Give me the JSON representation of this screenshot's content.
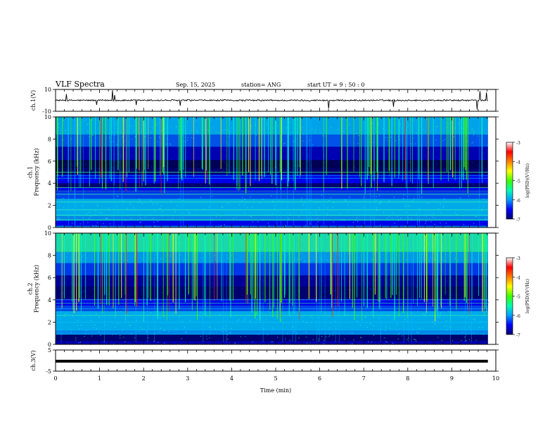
{
  "header": {
    "title": "VLF Spectra",
    "date": "Sep. 15, 2025",
    "station": "station= ANG",
    "start": "start  UT =   9 : 50 : 0"
  },
  "chart_data": [
    {
      "type": "line",
      "id": "ch1-waveform",
      "ylabel": "ch.1(V)",
      "ylim": [
        -10,
        10
      ],
      "ytick_labels": [
        "10",
        "-10"
      ],
      "baseline_value": 0,
      "xlim": [
        0,
        10
      ],
      "note": "raw waveform, near 0 V with sparse spikes"
    },
    {
      "type": "heatmap",
      "id": "ch1-spectrogram",
      "ylabel": "ch.1 Frequency (kHz)",
      "ylabel_lines": [
        "ch.1",
        "Frequency  (kHz)"
      ],
      "ylim": [
        0,
        10
      ],
      "ytick_labels": [
        "0",
        "2",
        "4",
        "6",
        "8",
        "10"
      ],
      "xlim": [
        0,
        10
      ],
      "data_end_min": 9.82,
      "colorbar": {
        "label": "log(PSD)(V²/Hz)",
        "range": [
          -7,
          -3
        ],
        "tick_labels": [
          "-3",
          "-4",
          "-5",
          "-6",
          "-7"
        ],
        "colors": [
          "#00006e",
          "#0000ff",
          "#00a0ff",
          "#00ffb0",
          "#40ff00",
          "#ffff00",
          "#ff8000",
          "#ff0000",
          "#ffffff"
        ]
      }
    },
    {
      "type": "heatmap",
      "id": "ch2-spectrogram",
      "ylabel": "ch.2 Frequency (kHz)",
      "ylabel_lines": [
        "ch.2",
        "Frequency  (kHz)"
      ],
      "ylim": [
        0,
        10
      ],
      "ytick_labels": [
        "0",
        "2",
        "4",
        "6",
        "8",
        "10"
      ],
      "xlim": [
        0,
        10
      ],
      "data_end_min": 9.82,
      "colorbar": {
        "label": "log(PSD)(V²/Hz)",
        "range": [
          -7,
          -3
        ],
        "tick_labels": [
          "-3",
          "-4",
          "-5",
          "-6",
          "-7"
        ],
        "colors": [
          "#00006e",
          "#0000ff",
          "#00a0ff",
          "#00ffb0",
          "#40ff00",
          "#ffff00",
          "#ff8000",
          "#ff0000",
          "#ffffff"
        ]
      }
    },
    {
      "type": "line",
      "id": "ch3-waveform",
      "ylabel": "ch.3(V)",
      "ylim": [
        -5,
        5
      ],
      "ytick_labels": [
        "5",
        "-5"
      ],
      "baseline_value": -0.3,
      "xlim": [
        0,
        10
      ],
      "xlabel": "Time  (min)",
      "xtick_labels": [
        "0",
        "1",
        "2",
        "3",
        "4",
        "5",
        "6",
        "7",
        "8",
        "9",
        "10"
      ]
    }
  ]
}
